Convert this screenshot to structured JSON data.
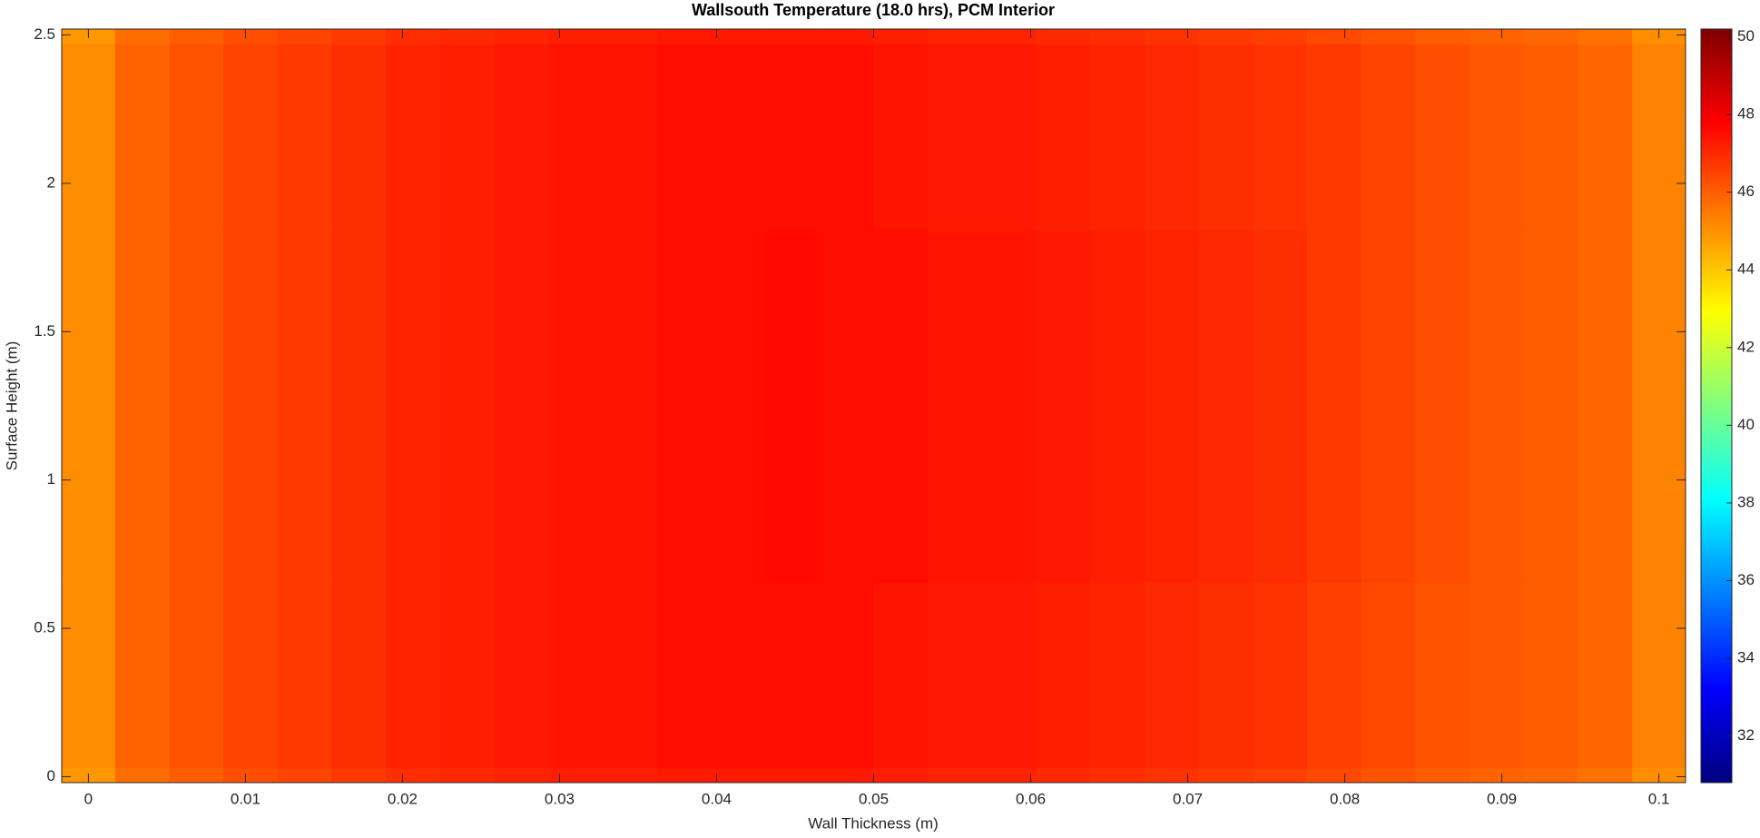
{
  "chart_data": {
    "type": "heatmap",
    "title": "Wallsouth Temperature (18.0 hrs), PCM Interior",
    "x_label": "Wall Thickness (m)",
    "y_label": "Surface Height (m)",
    "colormap": "jet",
    "x": [
      0,
      0.0034,
      0.0069,
      0.0103,
      0.0138,
      0.0172,
      0.0207,
      0.0241,
      0.0276,
      0.031,
      0.0345,
      0.0379,
      0.0414,
      0.0448,
      0.0483,
      0.0517,
      0.0552,
      0.0586,
      0.0621,
      0.0655,
      0.069,
      0.0724,
      0.0759,
      0.0793,
      0.0828,
      0.0862,
      0.0897,
      0.0931,
      0.0966,
      0.1
    ],
    "y": [
      0,
      0.06,
      1.25,
      2.44,
      2.5
    ],
    "z": [
      [
        44.9,
        45.7,
        46.0,
        46.3,
        46.5,
        46.7,
        46.9,
        47.0,
        47.1,
        47.2,
        47.2,
        47.3,
        47.3,
        47.3,
        47.3,
        47.2,
        47.1,
        47.1,
        47.0,
        46.9,
        46.8,
        46.7,
        46.6,
        46.4,
        46.2,
        46.0,
        45.9,
        45.8,
        45.6,
        45.1
      ],
      [
        45.1,
        45.9,
        46.2,
        46.5,
        46.7,
        46.9,
        47.1,
        47.2,
        47.3,
        47.4,
        47.4,
        47.5,
        47.5,
        47.5,
        47.5,
        47.4,
        47.3,
        47.3,
        47.2,
        47.1,
        47.0,
        46.9,
        46.8,
        46.6,
        46.4,
        46.2,
        46.1,
        46.0,
        45.8,
        45.3
      ],
      [
        45.1,
        45.9,
        46.2,
        46.5,
        46.7,
        46.9,
        47.1,
        47.2,
        47.3,
        47.4,
        47.4,
        47.5,
        47.5,
        47.6,
        47.5,
        47.5,
        47.4,
        47.4,
        47.3,
        47.2,
        47.1,
        47.0,
        46.9,
        46.7,
        46.5,
        46.3,
        46.1,
        46.0,
        45.8,
        45.3
      ],
      [
        45.1,
        45.9,
        46.2,
        46.5,
        46.7,
        46.9,
        47.1,
        47.2,
        47.3,
        47.4,
        47.4,
        47.5,
        47.5,
        47.5,
        47.5,
        47.4,
        47.3,
        47.3,
        47.2,
        47.1,
        47.0,
        46.9,
        46.8,
        46.7,
        46.5,
        46.3,
        46.1,
        46.0,
        45.8,
        45.3
      ],
      [
        44.9,
        45.7,
        46.0,
        46.3,
        46.5,
        46.7,
        46.9,
        47.0,
        47.1,
        47.2,
        47.2,
        47.3,
        47.3,
        47.3,
        47.3,
        47.2,
        47.1,
        47.1,
        47.0,
        46.9,
        46.8,
        46.7,
        46.6,
        46.4,
        46.2,
        46.0,
        45.9,
        45.8,
        45.6,
        45.1
      ]
    ],
    "xlim": [
      -0.0017,
      0.1017
    ],
    "ylim": [
      -0.02,
      2.52
    ],
    "xticks": [
      0,
      0.01,
      0.02,
      0.03,
      0.04,
      0.05,
      0.06,
      0.07,
      0.08,
      0.09,
      0.1
    ],
    "yticks": [
      0,
      0.5,
      1,
      1.5,
      2,
      2.5
    ],
    "clim": [
      30.8,
      50.2
    ],
    "cticks": [
      32,
      34,
      36,
      38,
      40,
      42,
      44,
      46,
      48,
      50
    ]
  }
}
